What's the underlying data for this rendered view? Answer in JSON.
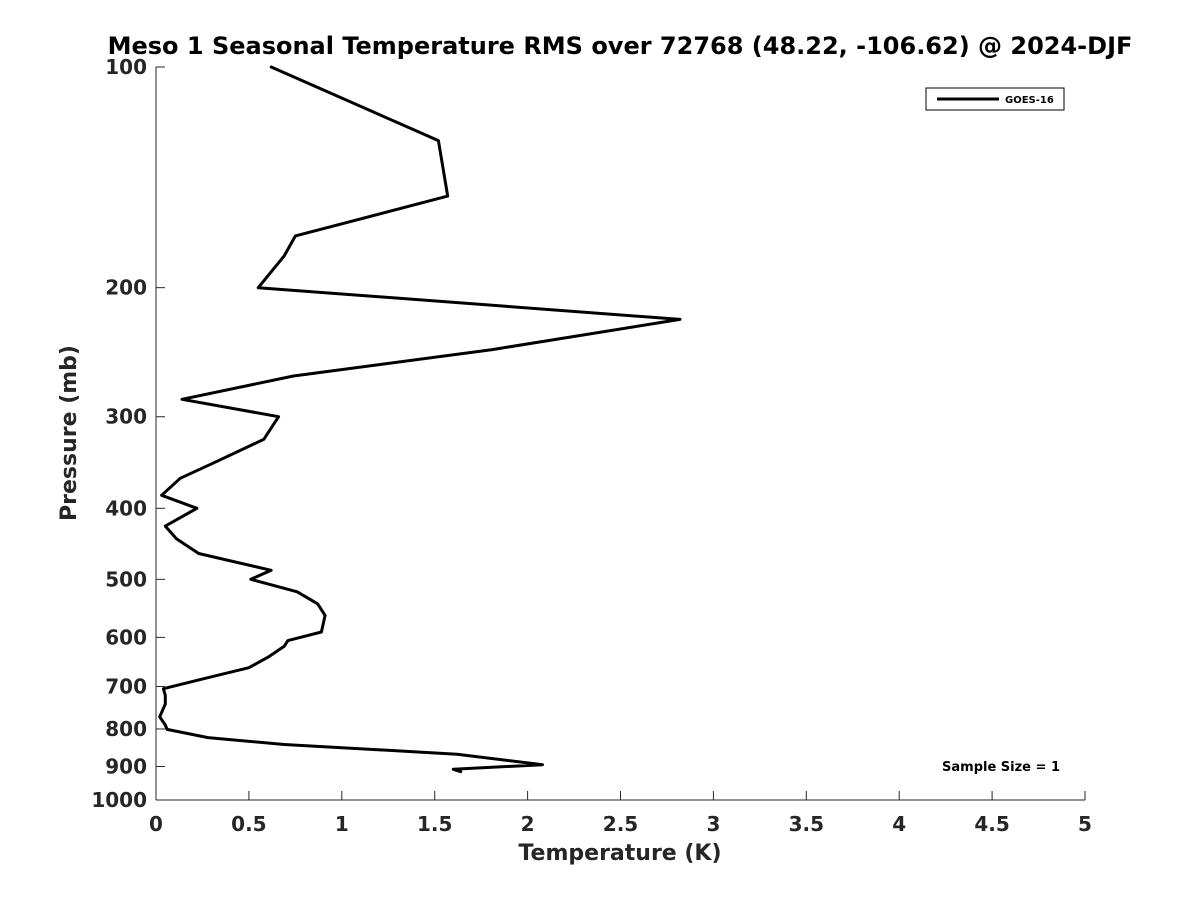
{
  "chart_data": {
    "type": "line",
    "title": "Meso 1 Seasonal Temperature RMS over 72768 (48.22, -106.62) @ 2024-DJF",
    "xlabel": "Temperature (K)",
    "ylabel": "Pressure (mb)",
    "xlim": [
      0,
      5
    ],
    "ylim": [
      100,
      1000
    ],
    "y_scale": "log",
    "y_reversed": true,
    "grid": false,
    "legend_position": "top-right",
    "x_ticks": [
      "0",
      "0.5",
      "1",
      "1.5",
      "2",
      "2.5",
      "3",
      "3.5",
      "4",
      "4.5",
      "5"
    ],
    "y_ticks": [
      "100",
      "200",
      "300",
      "400",
      "500",
      "600",
      "700",
      "800",
      "900",
      "1000"
    ],
    "series": [
      {
        "name": "GOES-16",
        "color": "#000000",
        "points": [
          [
            0.62,
            100
          ],
          [
            1.52,
            126
          ],
          [
            1.57,
            150
          ],
          [
            0.75,
            170
          ],
          [
            0.69,
            181
          ],
          [
            0.55,
            200
          ],
          [
            2.82,
            221
          ],
          [
            1.81,
            243
          ],
          [
            0.74,
            264
          ],
          [
            0.14,
            284
          ],
          [
            0.66,
            300
          ],
          [
            0.58,
            322
          ],
          [
            0.33,
            345
          ],
          [
            0.13,
            364
          ],
          [
            0.03,
            384
          ],
          [
            0.22,
            400
          ],
          [
            0.05,
            423
          ],
          [
            0.11,
            440
          ],
          [
            0.23,
            461
          ],
          [
            0.62,
            486
          ],
          [
            0.51,
            500
          ],
          [
            0.76,
            520
          ],
          [
            0.87,
            540
          ],
          [
            0.91,
            560
          ],
          [
            0.89,
            590
          ],
          [
            0.71,
            606
          ],
          [
            0.69,
            617
          ],
          [
            0.61,
            637
          ],
          [
            0.5,
            660
          ],
          [
            0.29,
            680
          ],
          [
            0.04,
            705
          ],
          [
            0.05,
            720
          ],
          [
            0.05,
            740
          ],
          [
            0.04,
            750
          ],
          [
            0.02,
            770
          ],
          [
            0.05,
            790
          ],
          [
            0.06,
            801
          ],
          [
            0.28,
            822
          ],
          [
            0.69,
            840
          ],
          [
            1.62,
            866
          ],
          [
            2.08,
            895
          ],
          [
            1.6,
            908
          ],
          [
            1.64,
            915
          ]
        ]
      }
    ],
    "annotation": "Sample Size = 1"
  }
}
